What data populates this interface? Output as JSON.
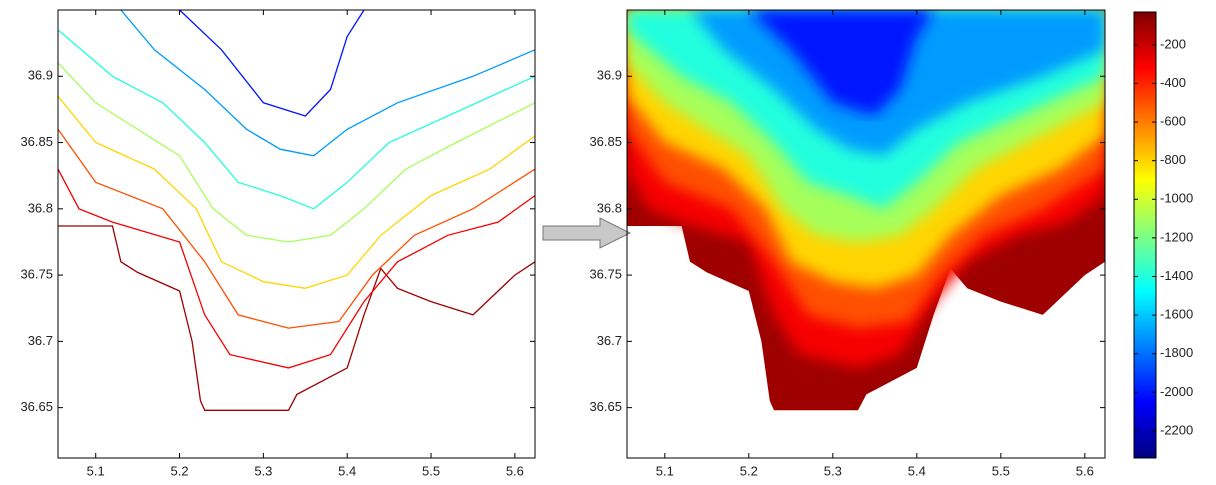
{
  "chart_data": [
    {
      "type": "contour",
      "xlim": [
        5.055,
        5.624
      ],
      "ylim": [
        36.612,
        36.95
      ],
      "xticks": [
        5.1,
        5.2,
        5.3,
        5.4,
        5.5,
        5.6
      ],
      "yticks": [
        36.65,
        36.7,
        36.75,
        36.8,
        36.85,
        36.9
      ],
      "contours": [
        {
          "level": -100,
          "x": [
            5.055,
            5.12,
            5.13,
            5.15,
            5.2,
            5.215,
            5.225,
            5.23,
            5.33,
            5.34,
            5.4,
            5.42,
            5.44,
            5.46,
            5.5,
            5.55,
            5.6,
            5.624
          ],
          "y": [
            36.787,
            36.787,
            36.76,
            36.752,
            36.738,
            36.7,
            36.655,
            36.648,
            36.648,
            36.66,
            36.68,
            36.72,
            36.755,
            36.74,
            36.73,
            36.72,
            36.75,
            36.76
          ]
        },
        {
          "level": -300,
          "x": [
            5.055,
            5.08,
            5.12,
            5.2,
            5.23,
            5.26,
            5.33,
            5.38,
            5.42,
            5.46,
            5.52,
            5.58,
            5.624
          ],
          "y": [
            36.83,
            36.8,
            36.79,
            36.775,
            36.72,
            36.69,
            36.68,
            36.69,
            36.73,
            36.76,
            36.78,
            36.79,
            36.81
          ]
        },
        {
          "level": -500,
          "x": [
            5.055,
            5.1,
            5.18,
            5.23,
            5.27,
            5.33,
            5.39,
            5.43,
            5.48,
            5.55,
            5.624
          ],
          "y": [
            36.86,
            36.82,
            36.8,
            36.76,
            36.72,
            36.71,
            36.715,
            36.75,
            36.78,
            36.8,
            36.83
          ]
        },
        {
          "level": -800,
          "x": [
            5.055,
            5.1,
            5.17,
            5.22,
            5.25,
            5.3,
            5.35,
            5.4,
            5.44,
            5.5,
            5.57,
            5.624
          ],
          "y": [
            36.885,
            36.85,
            36.83,
            36.8,
            36.76,
            36.745,
            36.74,
            36.75,
            36.78,
            36.81,
            36.83,
            36.855
          ]
        },
        {
          "level": -1100,
          "x": [
            5.055,
            5.1,
            5.15,
            5.2,
            5.24,
            5.28,
            5.33,
            5.38,
            5.42,
            5.47,
            5.53,
            5.624
          ],
          "y": [
            36.91,
            36.88,
            36.86,
            36.84,
            36.8,
            36.78,
            36.775,
            36.78,
            36.8,
            36.83,
            36.85,
            36.88
          ]
        },
        {
          "level": -1400,
          "x": [
            5.055,
            5.12,
            5.18,
            5.23,
            5.27,
            5.32,
            5.36,
            5.4,
            5.45,
            5.52,
            5.624
          ],
          "y": [
            36.935,
            36.9,
            36.88,
            36.85,
            36.82,
            36.81,
            36.8,
            36.82,
            36.85,
            36.87,
            36.9
          ]
        },
        {
          "level": -1700,
          "x": [
            5.13,
            5.17,
            5.23,
            5.28,
            5.32,
            5.36,
            5.4,
            5.46,
            5.55,
            5.624
          ],
          "y": [
            36.95,
            36.92,
            36.89,
            36.86,
            36.845,
            36.84,
            36.86,
            36.88,
            36.9,
            36.92
          ]
        },
        {
          "level": -2000,
          "x": [
            5.2,
            5.25,
            5.3,
            5.35,
            5.38,
            5.4,
            5.42
          ],
          "y": [
            36.95,
            36.92,
            36.88,
            36.87,
            36.89,
            36.93,
            36.95
          ]
        }
      ]
    },
    {
      "type": "heatmap",
      "xlim": [
        5.055,
        5.624
      ],
      "ylim": [
        36.612,
        36.95
      ],
      "xticks": [
        5.1,
        5.2,
        5.3,
        5.4,
        5.5,
        5.6
      ],
      "yticks": [
        36.65,
        36.7,
        36.75,
        36.8,
        36.85,
        36.9
      ],
      "colorbar": {
        "colormap": "jet",
        "lim": [
          -2340,
          -30
        ],
        "ticks": [
          -200,
          -400,
          -600,
          -800,
          -1000,
          -1200,
          -1400,
          -1600,
          -1800,
          -2000,
          -2200
        ]
      }
    }
  ]
}
